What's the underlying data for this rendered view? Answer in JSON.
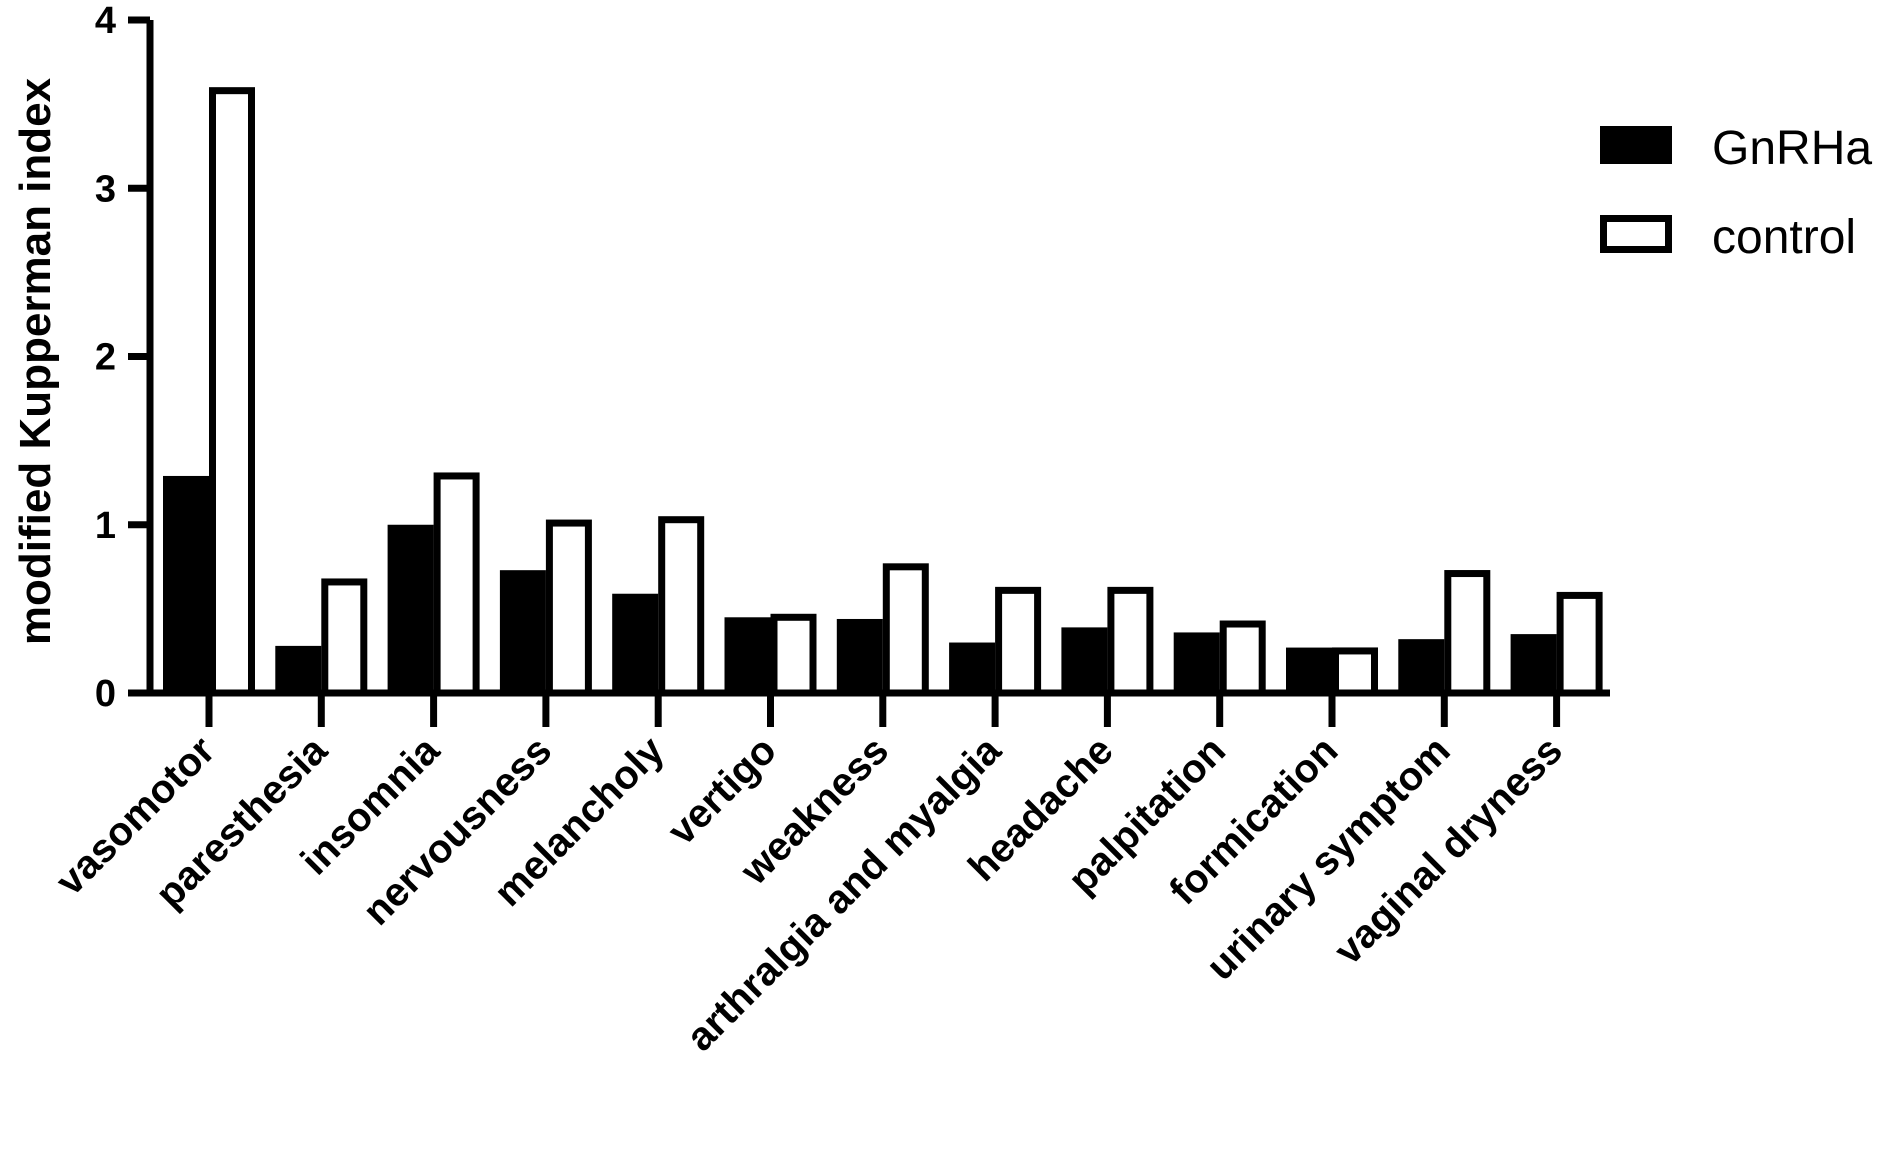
{
  "chart_data": {
    "type": "bar",
    "title": "",
    "xlabel": "",
    "ylabel": "modified Kupperman index",
    "ylim": [
      0,
      4
    ],
    "yticks": [
      "0",
      "1",
      "2",
      "3",
      "4"
    ],
    "legend_position": "top-right",
    "categories": [
      "vasomotor",
      "paresthesia",
      "insomnia",
      "nervousness",
      "melancholy",
      "vertigo",
      "weakness",
      "arthralgia and myalgia",
      "headache",
      "palpitation",
      "formication",
      "urinary symptom",
      "vaginal dryness"
    ],
    "series": [
      {
        "name": "GnRHa",
        "style": "filled",
        "color": "#000000",
        "values": [
          1.29,
          0.28,
          1.0,
          0.73,
          0.59,
          0.45,
          0.44,
          0.3,
          0.39,
          0.36,
          0.27,
          0.32,
          0.35
        ]
      },
      {
        "name": "control",
        "style": "outline",
        "color": "#ffffff",
        "values": [
          3.58,
          0.66,
          1.29,
          1.01,
          1.03,
          0.45,
          0.75,
          0.61,
          0.61,
          0.41,
          0.25,
          0.71,
          0.58
        ]
      }
    ]
  }
}
